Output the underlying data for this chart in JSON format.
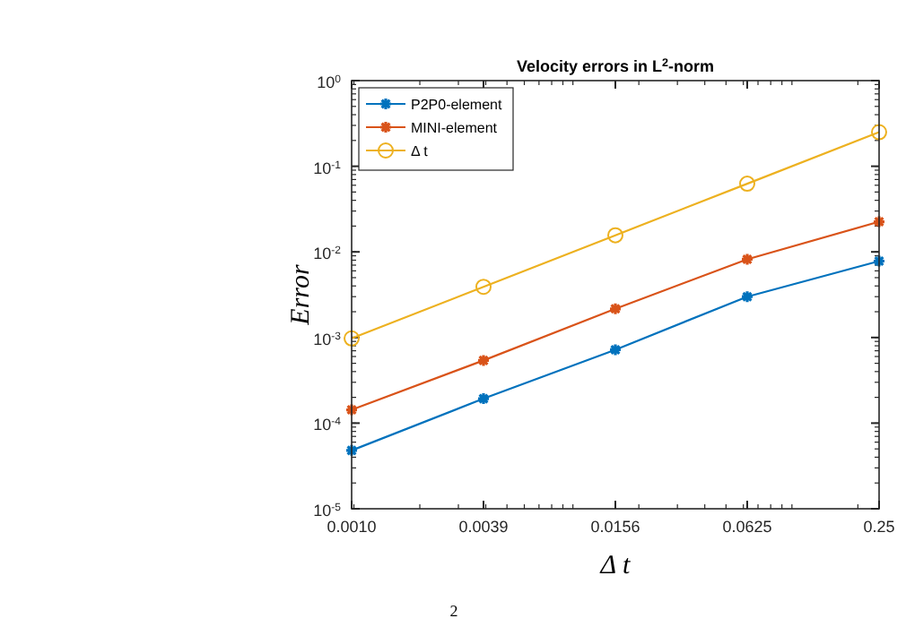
{
  "chart_data": {
    "type": "line",
    "title": "Velocity errors in L$^{2}$-norm",
    "xlabel": "Δ t",
    "ylabel": "Error",
    "x": [
      0.0009765625,
      0.00390625,
      0.015625,
      0.0625,
      0.25
    ],
    "series": [
      {
        "name": "P2P0-element",
        "color": "#0072bd",
        "marker": "cross",
        "values": [
          4.8e-05,
          0.000193,
          0.00072,
          0.003,
          0.0078
        ]
      },
      {
        "name": "MINI-element",
        "color": "#d95319",
        "marker": "cross",
        "values": [
          0.000143,
          0.00054,
          0.00216,
          0.0082,
          0.0225
        ]
      },
      {
        "name": "Δ t",
        "color": "#edb120",
        "marker": "circle",
        "values": [
          0.0009765625,
          0.00390625,
          0.015625,
          0.0625,
          0.25
        ]
      }
    ],
    "log": "xy",
    "xlim": [
      0.0009765625,
      0.25
    ],
    "xticks": [
      {
        "value": 0.0009765625,
        "label": "0.0010"
      },
      {
        "value": 0.00390625,
        "label": "0.0039"
      },
      {
        "value": 0.015625,
        "label": "0.0156"
      },
      {
        "value": 0.0625,
        "label": "0.0625"
      },
      {
        "value": 0.25,
        "label": "0.25"
      }
    ],
    "ylim": [
      1e-05,
      1
    ],
    "yticks": [
      {
        "value": 1e-05,
        "label": "10$^{-5}$"
      },
      {
        "value": 0.0001,
        "label": "10$^{-4}$"
      },
      {
        "value": 0.001,
        "label": "10$^{-3}$"
      },
      {
        "value": 0.01,
        "label": "10$^{-2}$"
      },
      {
        "value": 0.1,
        "label": "10$^{-1}$"
      },
      {
        "value": 1,
        "label": "10$^{0}$"
      }
    ],
    "grid": false,
    "legend": "top left",
    "line_style": "solid",
    "annotations": [
      "2"
    ]
  }
}
